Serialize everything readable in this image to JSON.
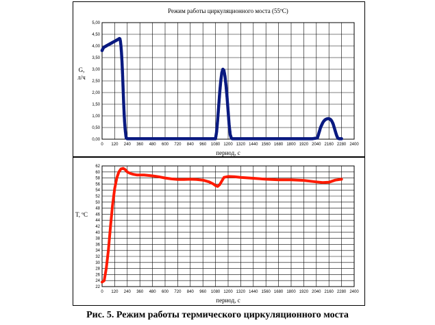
{
  "caption": "Рис. 5. Режим работы термического циркуляционного моста",
  "colors": {
    "top_series": "#0a1a80",
    "bottom_series": "#ff1a00",
    "grid": "#000000"
  },
  "chart_data": [
    {
      "type": "scatter",
      "title": "Режим работы циркуляционного моста (55ºС)",
      "ylabel": "G, л/ч",
      "xlabel": "период, с",
      "xlim": [
        0,
        2400
      ],
      "ylim": [
        0,
        5
      ],
      "grid": true,
      "x_ticks": [
        0,
        120,
        240,
        360,
        480,
        600,
        720,
        840,
        960,
        1080,
        1200,
        1320,
        1440,
        1560,
        1680,
        1800,
        1920,
        2040,
        2160,
        2280,
        2400
      ],
      "y_ticks": [
        "0,00",
        "0,50",
        "1,00",
        "1,50",
        "2,00",
        "2,50",
        "3,00",
        "3,50",
        "4,00",
        "4,50",
        "5,00"
      ],
      "y_tick_values": [
        0,
        0.5,
        1,
        1.5,
        2,
        2.5,
        3,
        3.5,
        4,
        4.5,
        5
      ],
      "series": [
        {
          "x": [
            0,
            10,
            20,
            40,
            60,
            80,
            100,
            120,
            140,
            160,
            165,
            170,
            175,
            180,
            185,
            190,
            195,
            200,
            205,
            210,
            215,
            220,
            225,
            230,
            240,
            300,
            400,
            500,
            600,
            700,
            800,
            900,
            1000,
            1080,
            1090,
            1100,
            1110,
            1120,
            1130,
            1140,
            1150,
            1160,
            1170,
            1180,
            1190,
            1200,
            1210,
            1220,
            1230,
            1240,
            1300,
            1400,
            1500,
            1600,
            1700,
            1800,
            1900,
            2000,
            2050,
            2060,
            2070,
            2080,
            2090,
            2100,
            2110,
            2120,
            2130,
            2140,
            2150,
            2160,
            2170,
            2180,
            2190,
            2200,
            2210,
            2220,
            2230,
            2240,
            2250,
            2260,
            2280
          ],
          "y": [
            3.8,
            3.9,
            3.95,
            4.0,
            4.05,
            4.1,
            4.15,
            4.2,
            4.25,
            4.3,
            4.32,
            4.3,
            4.2,
            4.0,
            3.7,
            3.3,
            2.8,
            2.2,
            1.6,
            1.1,
            0.7,
            0.4,
            0.2,
            0.05,
            0.02,
            0.02,
            0.02,
            0.02,
            0.02,
            0.02,
            0.02,
            0.02,
            0.02,
            0.02,
            0.3,
            0.8,
            1.4,
            2.0,
            2.5,
            2.85,
            3.0,
            2.95,
            2.7,
            2.3,
            1.8,
            1.2,
            0.6,
            0.2,
            0.05,
            0.02,
            0.02,
            0.02,
            0.02,
            0.02,
            0.02,
            0.02,
            0.02,
            0.02,
            0.05,
            0.2,
            0.35,
            0.5,
            0.6,
            0.7,
            0.77,
            0.82,
            0.85,
            0.87,
            0.88,
            0.88,
            0.86,
            0.82,
            0.75,
            0.65,
            0.5,
            0.35,
            0.2,
            0.08,
            0.03,
            0.02,
            0.02
          ]
        }
      ]
    },
    {
      "type": "line",
      "title": "",
      "ylabel": "T, ºС",
      "xlabel": "период, с",
      "xlim": [
        0,
        2400
      ],
      "ylim": [
        22,
        62
      ],
      "grid": true,
      "x_ticks": [
        0,
        120,
        240,
        360,
        480,
        600,
        720,
        840,
        960,
        1080,
        1200,
        1320,
        1440,
        1560,
        1680,
        1800,
        1920,
        2040,
        2160,
        2280,
        2400
      ],
      "y_ticks": [
        22,
        24,
        26,
        28,
        30,
        32,
        34,
        36,
        38,
        40,
        42,
        44,
        46,
        48,
        50,
        52,
        54,
        56,
        58,
        60,
        62
      ],
      "series": [
        {
          "x": [
            0,
            20,
            40,
            60,
            80,
            100,
            120,
            140,
            160,
            180,
            200,
            220,
            240,
            270,
            300,
            330,
            360,
            400,
            480,
            540,
            600,
            660,
            720,
            780,
            840,
            900,
            960,
            1020,
            1060,
            1080,
            1100,
            1120,
            1140,
            1160,
            1200,
            1260,
            1320,
            1440,
            1560,
            1680,
            1800,
            1920,
            2040,
            2100,
            2160,
            2220,
            2280
          ],
          "y": [
            23.5,
            24,
            28,
            34,
            42,
            49,
            54.5,
            58,
            60,
            61,
            61.2,
            60.8,
            60,
            59.5,
            59.2,
            59.0,
            59.0,
            59.0,
            58.7,
            58.4,
            58.0,
            57.7,
            57.5,
            57.5,
            57.6,
            57.5,
            57.3,
            56.7,
            56.0,
            55.5,
            55.2,
            55.8,
            57.0,
            58.2,
            58.5,
            58.4,
            58.2,
            57.9,
            57.6,
            57.4,
            57.4,
            57.2,
            56.7,
            56.5,
            56.6,
            57.3,
            57.6
          ]
        }
      ]
    }
  ]
}
